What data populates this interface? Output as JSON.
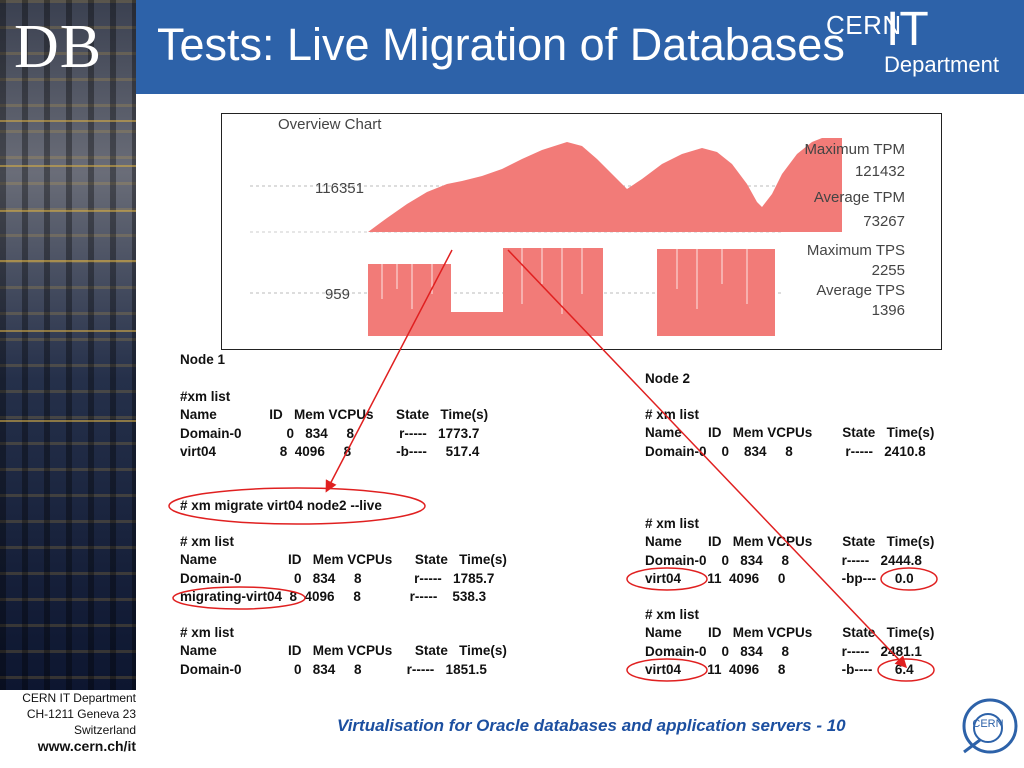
{
  "header": {
    "logo_text": "DB",
    "title": "Tests: Live Migration of Databases",
    "brand_top": "CERN",
    "brand_it": "IT",
    "brand_dept": "Department"
  },
  "chart": {
    "title": "Overview Chart",
    "gridline_labels": [
      "116351",
      "959"
    ],
    "stats": [
      {
        "label": "Maximum TPM",
        "value": "121432"
      },
      {
        "label": "Average TPM",
        "value": "73267"
      },
      {
        "label": "Maximum TPS",
        "value": "2255"
      },
      {
        "label": "Average TPS",
        "value": "1396"
      }
    ],
    "fill_color": "#f27b78"
  },
  "node1": {
    "heading": "Node 1",
    "block1": "#xm list\nName              ID   Mem VCPUs      State   Time(s)\nDomain-0            0   834     8            r-----   1773.7\nvirt04                 8  4096     8            -b----     517.4",
    "migrate_cmd": "# xm migrate virt04 node2 --live",
    "block2": "# xm list\nName                   ID   Mem VCPUs      State   Time(s)\nDomain-0              0   834     8              r-----   1785.7\nmigrating-virt04  8  4096     8             r-----    538.3",
    "block3": "# xm list\nName                   ID   Mem VCPUs      State   Time(s)\nDomain-0              0   834     8            r-----   1851.5"
  },
  "node2": {
    "heading": "Node 2",
    "block1": "# xm list\nName       ID   Mem VCPUs        State   Time(s)\nDomain-0    0    834     8              r-----   2410.8",
    "block2": "# xm list\nName       ID   Mem VCPUs        State   Time(s)\nDomain-0    0   834     8              r-----   2444.8\nvirt04       11  4096     0               -bp---     0.0",
    "block3": "# xm list\nName       ID   Mem VCPUs        State   Time(s)\nDomain-0    0   834     8              r-----   2481.1\nvirt04       11  4096     8               -b----      6.4"
  },
  "footer": {
    "org_line1": "CERN IT Department",
    "org_line2": "CH-1211 Geneva 23",
    "org_line3": "Switzerland",
    "url": "www.cern.ch/it",
    "caption": "Virtualisation for Oracle databases and application servers - 10",
    "logo_text": "CERN"
  },
  "colors": {
    "header_blue": "#2d62a9",
    "annotation_red": "#e02020",
    "caption_blue": "#1c4fa0"
  }
}
